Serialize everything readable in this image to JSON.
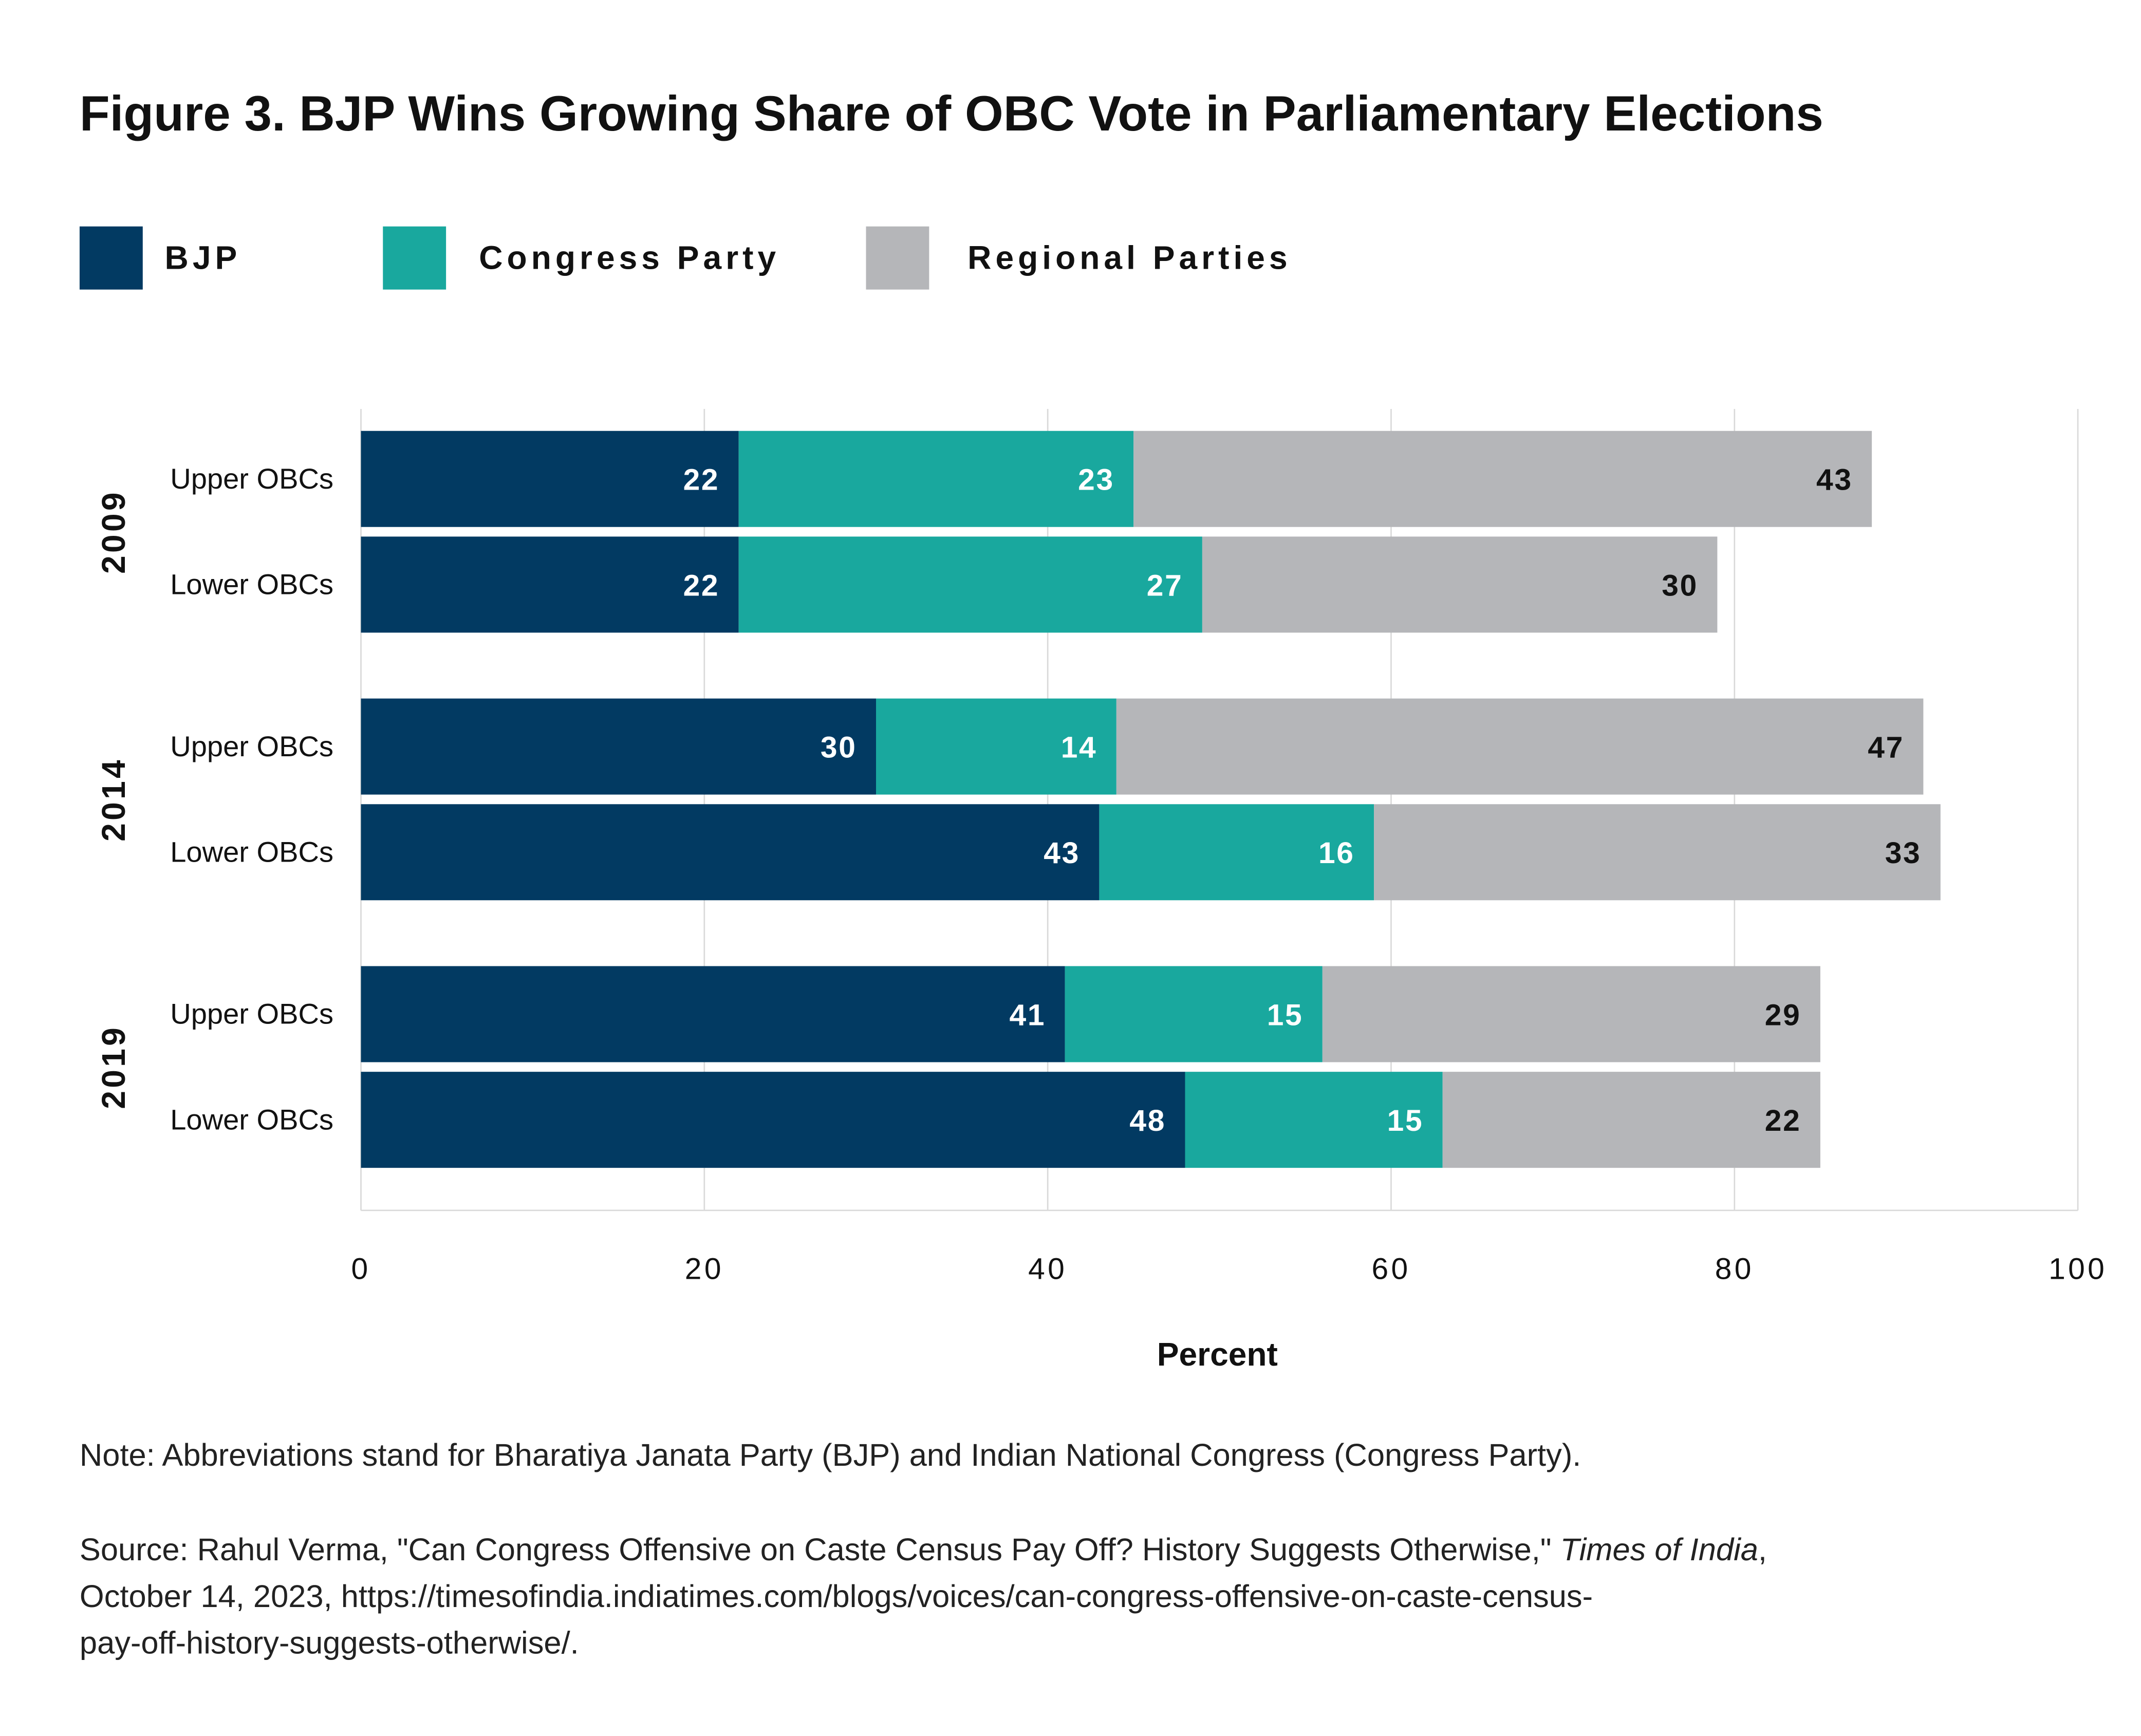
{
  "title": "Figure 3. BJP Wins Growing Share of OBC Vote in Parliamentary Elections",
  "chart_data": {
    "type": "bar",
    "orientation": "horizontal",
    "stacked": true,
    "title": "Figure 3. BJP Wins Growing Share of OBC Vote in Parliamentary Elections",
    "xlabel": "Percent",
    "ylabel": "",
    "xlim": [
      0,
      100
    ],
    "xticks": [
      "0",
      "20",
      "40",
      "60",
      "80",
      "100"
    ],
    "grid": true,
    "legend_position": "top-left",
    "groups": [
      "2009",
      "2014",
      "2019"
    ],
    "categories": [
      "Upper OBCs",
      "Lower OBCs"
    ],
    "series": [
      {
        "name": "BJP",
        "color": "#023a62",
        "values": [
          [
            22,
            22
          ],
          [
            30,
            43
          ],
          [
            41,
            48
          ]
        ]
      },
      {
        "name": "Congress Party",
        "color": "#19a89e",
        "values": [
          [
            23,
            27
          ],
          [
            14,
            16
          ],
          [
            15,
            15
          ]
        ]
      },
      {
        "name": "Regional Parties",
        "color": "#b5b6b9",
        "values": [
          [
            43,
            30
          ],
          [
            47,
            33
          ],
          [
            29,
            22
          ]
        ]
      }
    ]
  },
  "note": "Note: Abbreviations stand for Bharatiya Janata Party (BJP) and Indian National Congress (Congress Party).",
  "source": {
    "line1_pre": "Source: Rahul Verma, \"Can Congress Offensive on Caste Census Pay Off? History Suggests Otherwise,\" ",
    "line1_italic": "Times of India",
    "line1_post": ",",
    "line2": "October 14, 2023, https://timesofindia.indiatimes.com/blogs/voices/can-congress-offensive-on-caste-census-",
    "line3": "pay-off-history-suggests-otherwise/."
  }
}
